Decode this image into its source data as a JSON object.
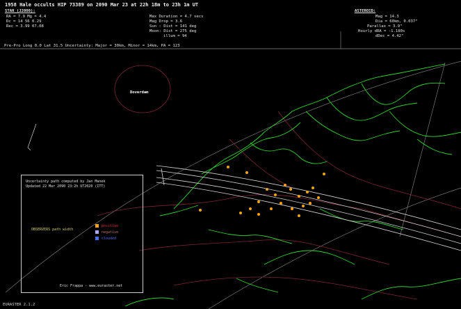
{
  "header": {
    "title": "1958  Hale occults HIP 73389 on 2090 Mar 23 at 22h 18m to 23h 1m UT",
    "star_heading": "STAR (J2000):",
    "star_lines": [
      "RA = 7.9      Mg = 4.4",
      "Dc = 14 56   0.29",
      "Rec = 3.99 07.08"
    ],
    "center_lines": [
      "Max Duration = 4.7 secs",
      "Mag Drop = 3.6",
      "Sun :  Dist = 141 deg",
      "Moon:  Dist = 275 deg",
      "illum = 94"
    ],
    "right_heading": "ASTEROID:",
    "right_lines": [
      "Mag = 14.3",
      "Dia = 60km, 0.037\"",
      "Parallax = 3.9\"",
      "Hourly dRA = -1.180s",
      "dDec = 4.42\""
    ],
    "info_bar": "Pre-Pro Long 0.0  Lat 31.5     Uncertainty: Major = 30km, Minor = 14km, PA = 123"
  },
  "map": {
    "country_label": "Doverdam"
  },
  "legend": {
    "lines": [
      "Uncertainty path computed by Jan Manek",
      "Updated 22 Mar 2090 23:2h UT2020 (ITT)"
    ],
    "center_path_label": "OBSERVERS path width",
    "keys": [
      {
        "label": "positive",
        "color": "#e03030"
      },
      {
        "label": "negative",
        "color": "#a8a8f0"
      },
      {
        "label": "clouded",
        "color": "#4a6cf0"
      }
    ],
    "credit": "Eric Frappa - www.euraster.net"
  },
  "footer": {
    "label": "EURASTER 2.1.2"
  },
  "colors": {
    "coast": "#2fd42f",
    "border": "#7a2535",
    "path": "#d8d8d8",
    "observer": "#f2a318"
  }
}
